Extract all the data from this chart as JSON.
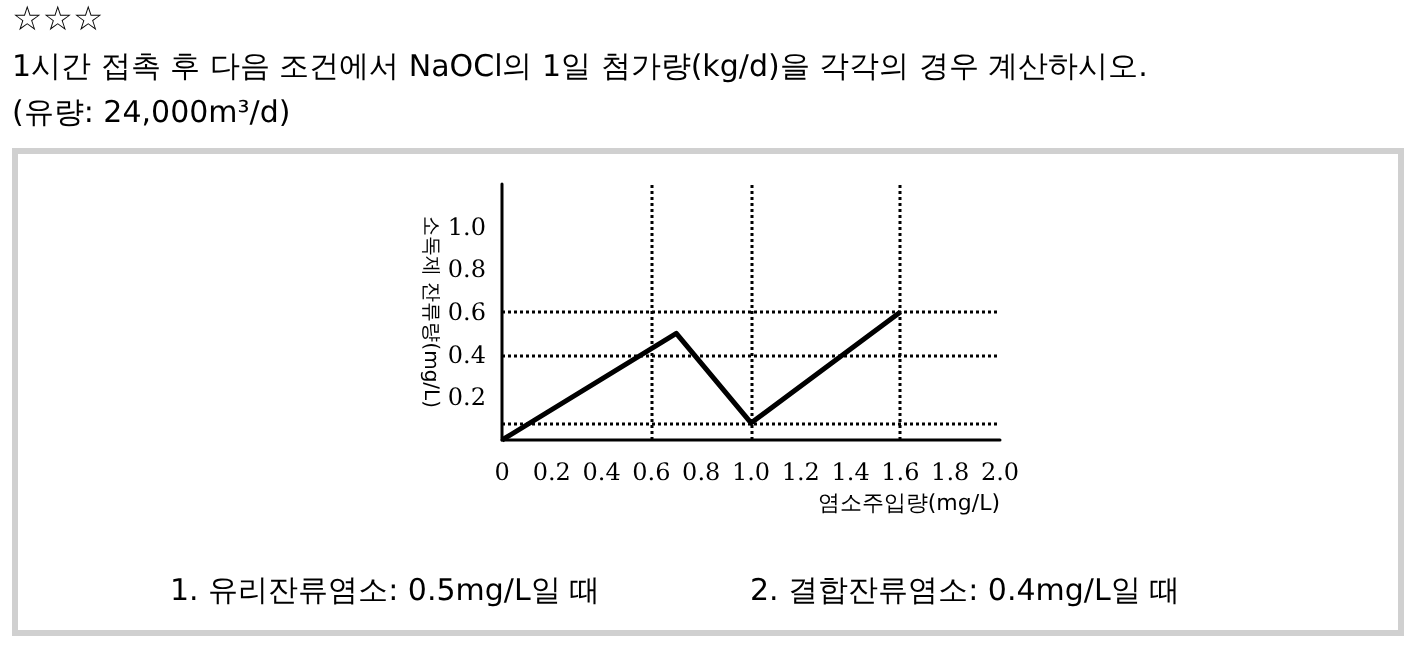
{
  "chart_data": {
    "type": "line",
    "title": "1시간 접촉 후 다음 조건에서 NaOCl의 1일 첨가량(kg/d)을 각각의 경우 계산하시오.",
    "subtitle": "(유량: 24,000m³/d)",
    "annotations": [
      "☆☆☆",
      "1. 유리잔류염소: 0.5mg/L일 때",
      "2. 결합잔류염소: 0.4mg/L일 때"
    ],
    "xlabel": "염소주입량(mg/L)",
    "ylabel": "소독제 잔류량(mg/L)",
    "x": [
      0,
      0.7,
      1.0,
      1.6
    ],
    "series": [
      {
        "color": "#000000",
        "values": [
          0,
          0.5,
          0.08,
          0.6
        ]
      }
    ],
    "xlim": [
      0,
      2.0
    ],
    "ylim": [
      0,
      1.2
    ],
    "xticks": [
      0,
      0.2,
      0.4,
      0.6,
      0.8,
      {
        "value": 1,
        "label": "1.0"
      },
      1.2,
      1.4,
      1.6,
      1.8,
      {
        "value": 2,
        "label": "2.0"
      }
    ],
    "yticks": [
      0.2,
      0.4,
      0.6,
      0.8,
      {
        "value": 1,
        "label": "1.0"
      }
    ],
    "ref_lines": [
      {
        "axis": "x",
        "value": 0.6,
        "line_style": "dotted"
      },
      {
        "axis": "x",
        "value": 1.0,
        "line_style": "dotted"
      },
      {
        "axis": "x",
        "value": 1.6,
        "line_style": "dotted"
      },
      {
        "axis": "y",
        "value": 0.6,
        "line_style": "dotted"
      },
      {
        "axis": "y",
        "value": 0.4,
        "line_style": "dotted"
      },
      {
        "axis": "y",
        "value": 0.08,
        "line_style": "dotted"
      }
    ],
    "grid": false,
    "marker": "none",
    "line_style": "solid"
  }
}
